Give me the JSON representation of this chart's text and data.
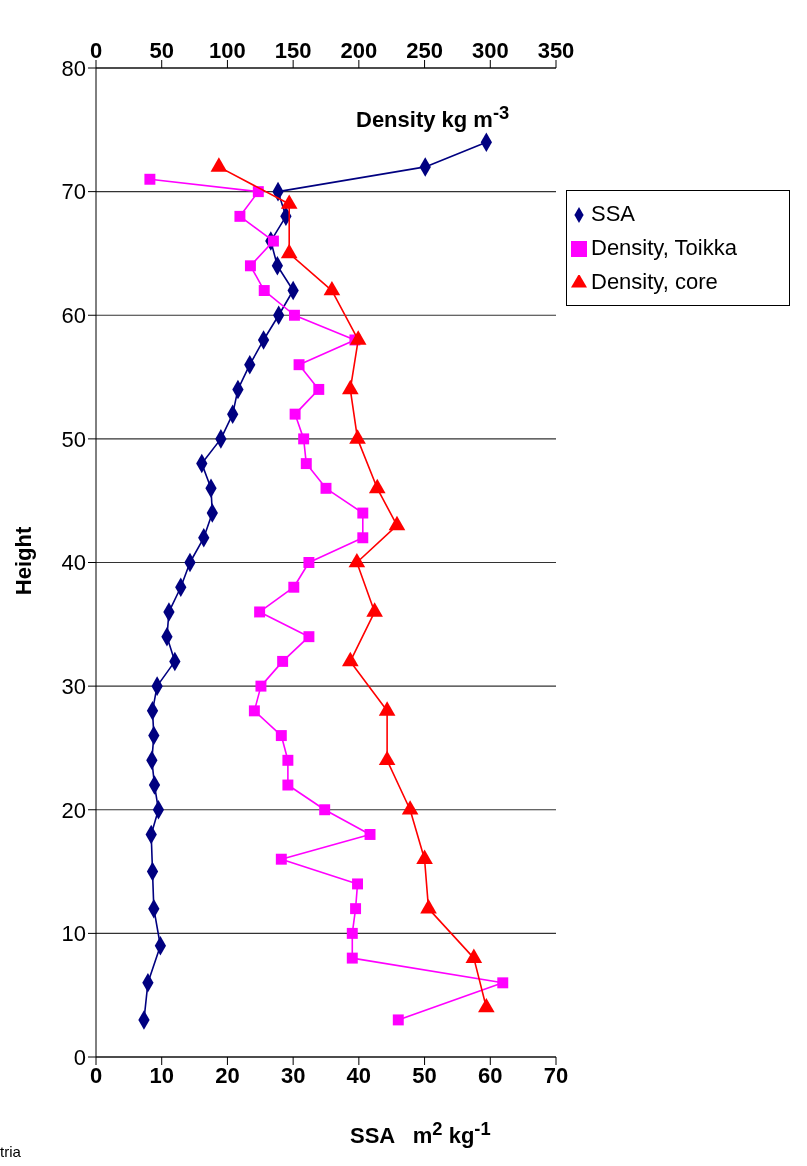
{
  "chart_data": {
    "type": "line",
    "xlabel": "SSA   m$^{2}$ kg$^{-1}$",
    "x2label": "Density kg m$^{-3}$",
    "ylabel": "Height",
    "annotations": [
      "tria"
    ],
    "xlim": [
      0,
      70
    ],
    "xticks": [
      0,
      10,
      20,
      30,
      40,
      50,
      60,
      70
    ],
    "x2lim": [
      0,
      350
    ],
    "x2ticks": [
      0,
      50,
      100,
      150,
      200,
      250,
      300,
      350
    ],
    "ylim": [
      0,
      80
    ],
    "yticks": [
      0,
      10,
      20,
      30,
      40,
      50,
      60,
      70,
      80
    ],
    "grid": "y",
    "legend": "top right",
    "line_style": "solid",
    "series": [
      {
        "name": "SSA",
        "color": "#000080",
        "marker": "diamond",
        "x": [
          59.4,
          50.1,
          27.7,
          28.9,
          26.6,
          27.6,
          30.0,
          27.8,
          25.5,
          23.4,
          21.6,
          20.8,
          19.0,
          16.1,
          17.5,
          17.7,
          16.4,
          14.3,
          12.9,
          11.1,
          10.8,
          12.0,
          9.3,
          8.6,
          8.8,
          8.5,
          8.9,
          9.5,
          8.4,
          8.6,
          8.8,
          9.8,
          7.9,
          7.3
        ],
        "values": [
          74,
          72,
          70,
          68,
          66,
          64,
          62,
          60,
          58,
          56,
          54,
          52,
          50,
          48,
          46,
          44,
          42,
          40,
          38,
          36,
          34,
          32,
          30,
          28,
          26,
          24,
          22,
          20,
          18,
          15,
          12,
          9,
          6,
          3
        ]
      },
      {
        "name": "Density, Toikka",
        "color": "#ff00ff",
        "marker": "square",
        "axis": "x2",
        "x": [
          41,
          123.5,
          109.5,
          135,
          117.5,
          128,
          151,
          197,
          154.5,
          169.5,
          151.5,
          158,
          160,
          175,
          203,
          203,
          162,
          150.5,
          124.5,
          162,
          142,
          125.5,
          120.5,
          141,
          146,
          146,
          174,
          208.5,
          141,
          199,
          197.5,
          195,
          195,
          309.5,
          230
        ],
        "values": [
          71,
          70,
          68,
          66,
          64,
          62,
          60,
          58,
          56,
          54,
          52,
          50,
          48,
          46,
          44,
          42,
          40,
          38,
          36,
          34,
          32,
          30,
          28,
          26,
          24,
          22,
          20,
          18,
          16,
          14,
          12,
          10,
          8,
          6,
          3
        ]
      },
      {
        "name": "Density, core",
        "color": "#ff0000",
        "marker": "triangle",
        "axis": "x2",
        "x": [
          93.5,
          147,
          147,
          179.5,
          199.5,
          193.5,
          199,
          214,
          229,
          198.5,
          212,
          193.5,
          221.5,
          221.5,
          239,
          250,
          253,
          287.5,
          297
        ],
        "values": [
          72,
          69,
          65,
          62,
          58,
          54,
          50,
          46,
          43,
          40,
          36,
          32,
          28,
          24,
          20,
          16,
          12,
          8,
          4
        ]
      }
    ]
  }
}
